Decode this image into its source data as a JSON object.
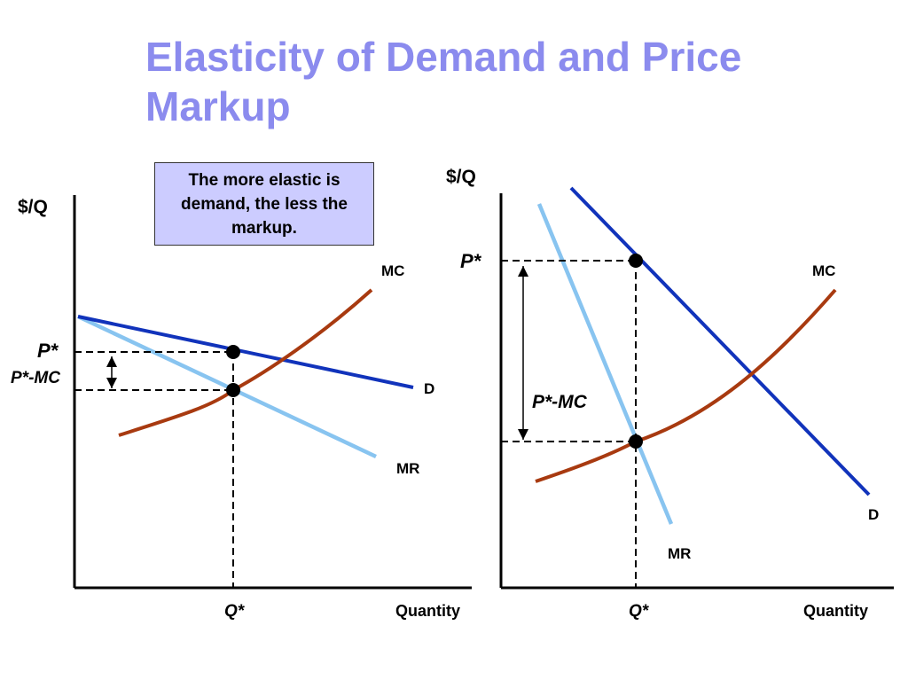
{
  "title": "Elasticity of Demand and Price Markup",
  "callout": "The more elastic is demand, the less the markup.",
  "colors": {
    "title": "#8b8bee",
    "demand": "#1133bb",
    "mr": "#88c4f0",
    "mc": "#a83a10",
    "callout_bg": "#ccccff"
  },
  "left_panel": {
    "y_axis_label": "$/Q",
    "x_axis_label": "Quantity",
    "p_star": "P*",
    "markup_label": "P*-MC",
    "q_star": "Q*",
    "mc_label": "MC",
    "d_label": "D",
    "mr_label": "MR"
  },
  "right_panel": {
    "y_axis_label": "$/Q",
    "x_axis_label": "Quantity",
    "p_star": "P*",
    "markup_label": "P*-MC",
    "q_star": "Q*",
    "mc_label": "MC",
    "d_label": "D",
    "mr_label": "MR"
  }
}
